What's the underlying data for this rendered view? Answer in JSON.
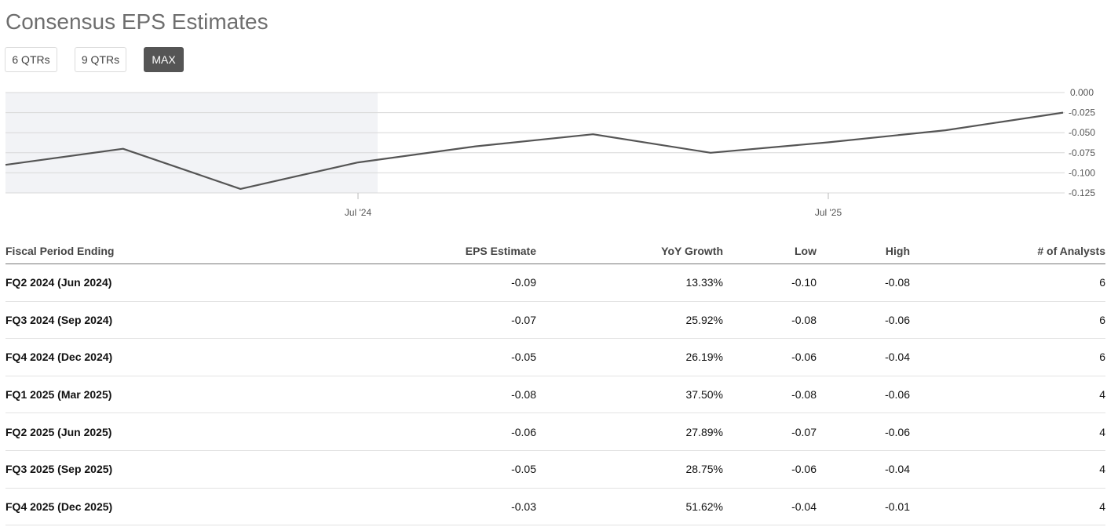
{
  "title": "Consensus EPS Estimates",
  "range_buttons": [
    "6 QTRs",
    "9 QTRs",
    "MAX"
  ],
  "active_range": "MAX",
  "colors": {
    "line": "#555555",
    "shade": "#f2f3f6",
    "grid": "#d8d8d8",
    "active_button": "#555555"
  },
  "chart_data": {
    "type": "line",
    "title": "",
    "xlabel": "",
    "ylabel": "",
    "ylim": [
      -0.125,
      0.0
    ],
    "y_ticks": [
      0.0,
      -0.025,
      -0.05,
      -0.075,
      -0.1,
      -0.125
    ],
    "y_tick_labels": [
      "0.000",
      "-0.025",
      "-0.050",
      "-0.075",
      "-0.100",
      "-0.125"
    ],
    "x_tick_labels": [
      "Jul '24",
      "Jul '25"
    ],
    "shaded_region": "history",
    "series": [
      {
        "name": "EPS",
        "values": [
          -0.09,
          -0.07,
          -0.12,
          -0.087,
          -0.067,
          -0.052,
          -0.075,
          -0.062,
          -0.047,
          -0.025
        ]
      }
    ]
  },
  "table": {
    "headers": [
      "Fiscal Period Ending",
      "EPS Estimate",
      "YoY Growth",
      "Low",
      "High",
      "# of Analysts"
    ],
    "rows": [
      [
        "FQ2 2024 (Jun 2024)",
        "-0.09",
        "13.33%",
        "-0.10",
        "-0.08",
        "6"
      ],
      [
        "FQ3 2024 (Sep 2024)",
        "-0.07",
        "25.92%",
        "-0.08",
        "-0.06",
        "6"
      ],
      [
        "FQ4 2024 (Dec 2024)",
        "-0.05",
        "26.19%",
        "-0.06",
        "-0.04",
        "6"
      ],
      [
        "FQ1 2025 (Mar 2025)",
        "-0.08",
        "37.50%",
        "-0.08",
        "-0.06",
        "4"
      ],
      [
        "FQ2 2025 (Jun 2025)",
        "-0.06",
        "27.89%",
        "-0.07",
        "-0.06",
        "4"
      ],
      [
        "FQ3 2025 (Sep 2025)",
        "-0.05",
        "28.75%",
        "-0.06",
        "-0.04",
        "4"
      ],
      [
        "FQ4 2025 (Dec 2025)",
        "-0.03",
        "51.62%",
        "-0.04",
        "-0.01",
        "4"
      ]
    ]
  }
}
